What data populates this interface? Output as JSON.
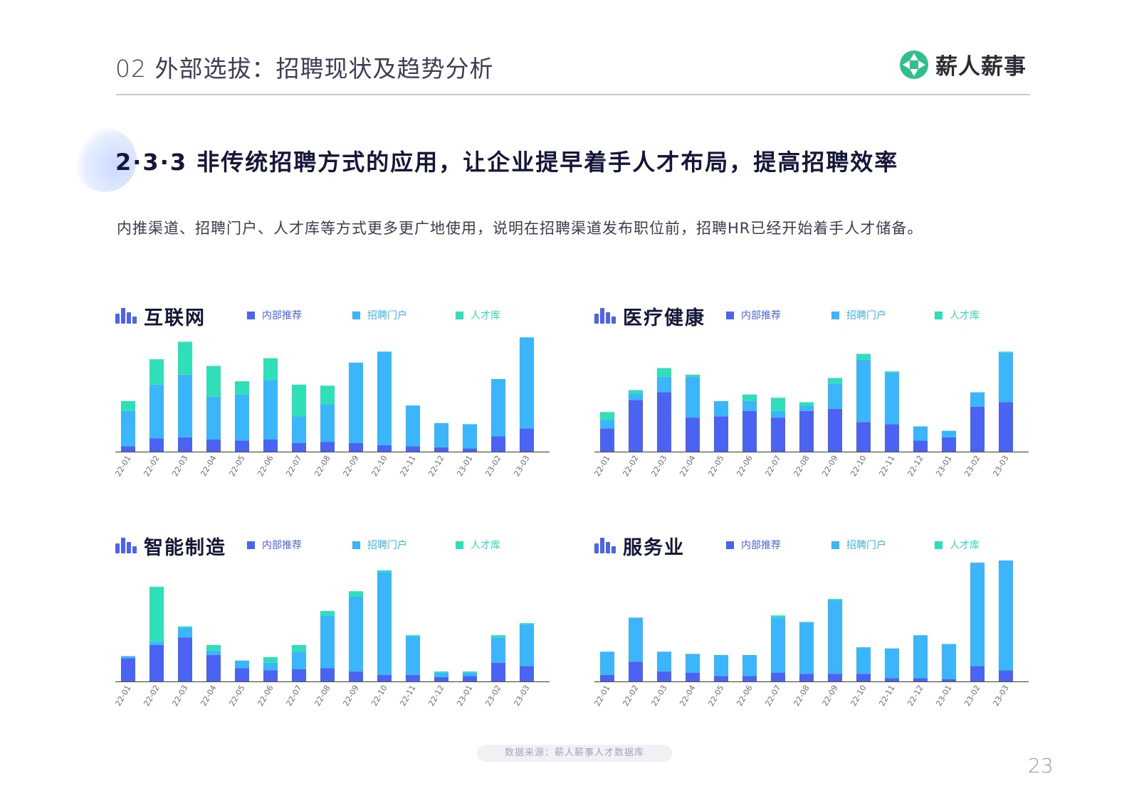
{
  "header": {
    "title": "02 外部选拔：招聘现状及趋势分析",
    "brand": "薪人薪事"
  },
  "section": {
    "title": "2·3·3 非传统招聘方式的应用，让企业提早着手人才布局，提高招聘效率",
    "description": "内推渠道、招聘门户、人才库等方式更多更广地使用，说明在招聘渠道发布职位前，招聘HR已经开始着手人才储备。"
  },
  "colors": {
    "internal": "#4a63f2",
    "portal": "#3cb6fb",
    "talent": "#2fdfb8",
    "axis": "#555555",
    "title": "#14163a"
  },
  "footer": {
    "source": "数据来源：薪人薪事人才数据库",
    "page": "23"
  },
  "chart_data": [
    {
      "type": "bar",
      "stacked": true,
      "title": "互联网",
      "categories": [
        "22-01",
        "22-02",
        "22-03",
        "22-04",
        "22-05",
        "22-06",
        "22-07",
        "22-08",
        "22-09",
        "22-10",
        "22-11",
        "22-12",
        "23-01",
        "23-02",
        "23-03"
      ],
      "series": [
        {
          "name": "内部推荐",
          "values": [
            5,
            12,
            13,
            11,
            10,
            11,
            8,
            9,
            8,
            6,
            5,
            4,
            3,
            14,
            21
          ]
        },
        {
          "name": "招聘门户",
          "values": [
            32,
            49,
            57,
            39,
            42,
            54,
            24,
            34,
            73,
            85,
            37,
            22,
            22,
            52,
            83
          ]
        },
        {
          "name": "人才库",
          "values": [
            9,
            23,
            30,
            28,
            12,
            20,
            29,
            17,
            0,
            0,
            0,
            0,
            0,
            0,
            0
          ]
        }
      ],
      "legend_position": "top"
    },
    {
      "type": "bar",
      "stacked": true,
      "title": "医疗健康",
      "categories": [
        "22-01",
        "22-02",
        "22-03",
        "22-04",
        "22-05",
        "22-06",
        "22-07",
        "22-08",
        "22-09",
        "22-10",
        "22-11",
        "22-12",
        "23-01",
        "23-02",
        "23-03"
      ],
      "series": [
        {
          "name": "内部推荐",
          "values": [
            21,
            47,
            54,
            31,
            32,
            37,
            31,
            37,
            39,
            27,
            25,
            10,
            13,
            41,
            45
          ]
        },
        {
          "name": "招聘门户",
          "values": [
            8,
            6,
            14,
            37,
            14,
            9,
            6,
            5,
            23,
            57,
            47,
            13,
            6,
            13,
            45
          ]
        },
        {
          "name": "人才库",
          "values": [
            7,
            3,
            8,
            2,
            0,
            6,
            12,
            3,
            5,
            5,
            1,
            0,
            0,
            0,
            1
          ]
        }
      ],
      "legend_position": "top"
    },
    {
      "type": "bar",
      "stacked": true,
      "title": "智能制造",
      "categories": [
        "22-01",
        "22-02",
        "22-03",
        "22-04",
        "22-05",
        "22-06",
        "22-07",
        "22-08",
        "22-09",
        "22-10",
        "22-11",
        "22-12",
        "23-01",
        "23-02",
        "23-03"
      ],
      "series": [
        {
          "name": "内部推荐",
          "values": [
            21,
            33,
            40,
            24,
            12,
            10,
            11,
            12,
            9,
            6,
            6,
            4,
            5,
            17,
            14
          ]
        },
        {
          "name": "招聘门户",
          "values": [
            2,
            3,
            9,
            4,
            7,
            7,
            16,
            48,
            68,
            93,
            35,
            4,
            3,
            23,
            38
          ]
        },
        {
          "name": "人才库",
          "values": [
            0,
            50,
            1,
            5,
            0,
            5,
            6,
            4,
            5,
            2,
            1,
            1,
            1,
            2,
            1
          ]
        }
      ],
      "legend_position": "top"
    },
    {
      "type": "bar",
      "stacked": true,
      "title": "服务业",
      "categories": [
        "22-01",
        "22-02",
        "22-03",
        "22-04",
        "22-05",
        "22-06",
        "22-07",
        "22-08",
        "22-09",
        "22-10",
        "22-11",
        "22-12",
        "23-01",
        "23-02",
        "23-03"
      ],
      "series": [
        {
          "name": "内部推荐",
          "values": [
            6,
            18,
            9,
            8,
            5,
            5,
            8,
            7,
            7,
            7,
            3,
            3,
            2,
            14,
            10
          ]
        },
        {
          "name": "招聘门户",
          "values": [
            21,
            40,
            18,
            17,
            19,
            19,
            50,
            47,
            67,
            24,
            27,
            39,
            32,
            94,
            101
          ]
        },
        {
          "name": "人才库",
          "values": [
            0,
            0,
            0,
            0,
            0,
            0,
            2,
            0,
            1,
            0,
            0,
            0,
            0,
            0,
            0
          ]
        }
      ],
      "legend_position": "top"
    }
  ]
}
